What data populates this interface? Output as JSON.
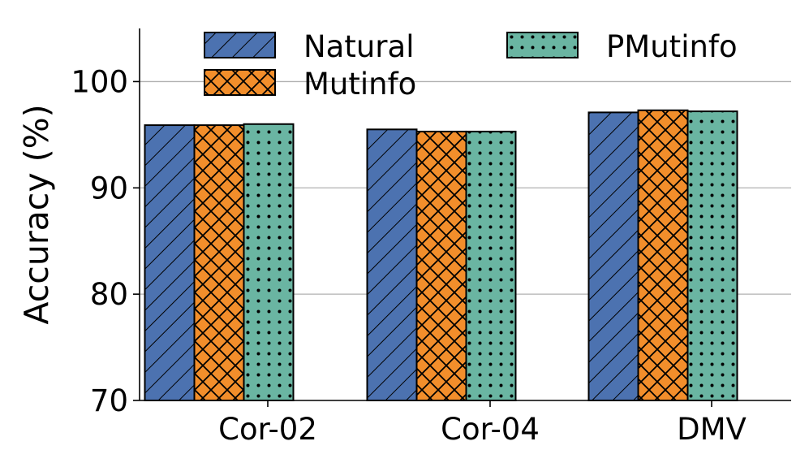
{
  "chart_data": {
    "type": "bar",
    "categories": [
      "Cor-02",
      "Cor-04",
      "DMV"
    ],
    "series": [
      {
        "name": "Natural",
        "values": [
          95.9,
          95.5,
          97.1
        ],
        "color": "#4c72b0",
        "pattern": "diagonal-hatch"
      },
      {
        "name": "Mutinfo",
        "values": [
          95.9,
          95.3,
          97.3
        ],
        "color": "#f28e2b",
        "pattern": "cross-hatch"
      },
      {
        "name": "PMutinfo",
        "values": [
          96.0,
          95.3,
          97.2
        ],
        "color": "#6ab5a2",
        "pattern": "dots"
      }
    ],
    "ylabel": "Accuracy (%)",
    "xlabel": "",
    "ylim": [
      70,
      105
    ],
    "yticks": [
      70,
      80,
      90,
      100
    ],
    "grid": "horizontal",
    "legend_position": "top",
    "legend_columns": 2
  }
}
